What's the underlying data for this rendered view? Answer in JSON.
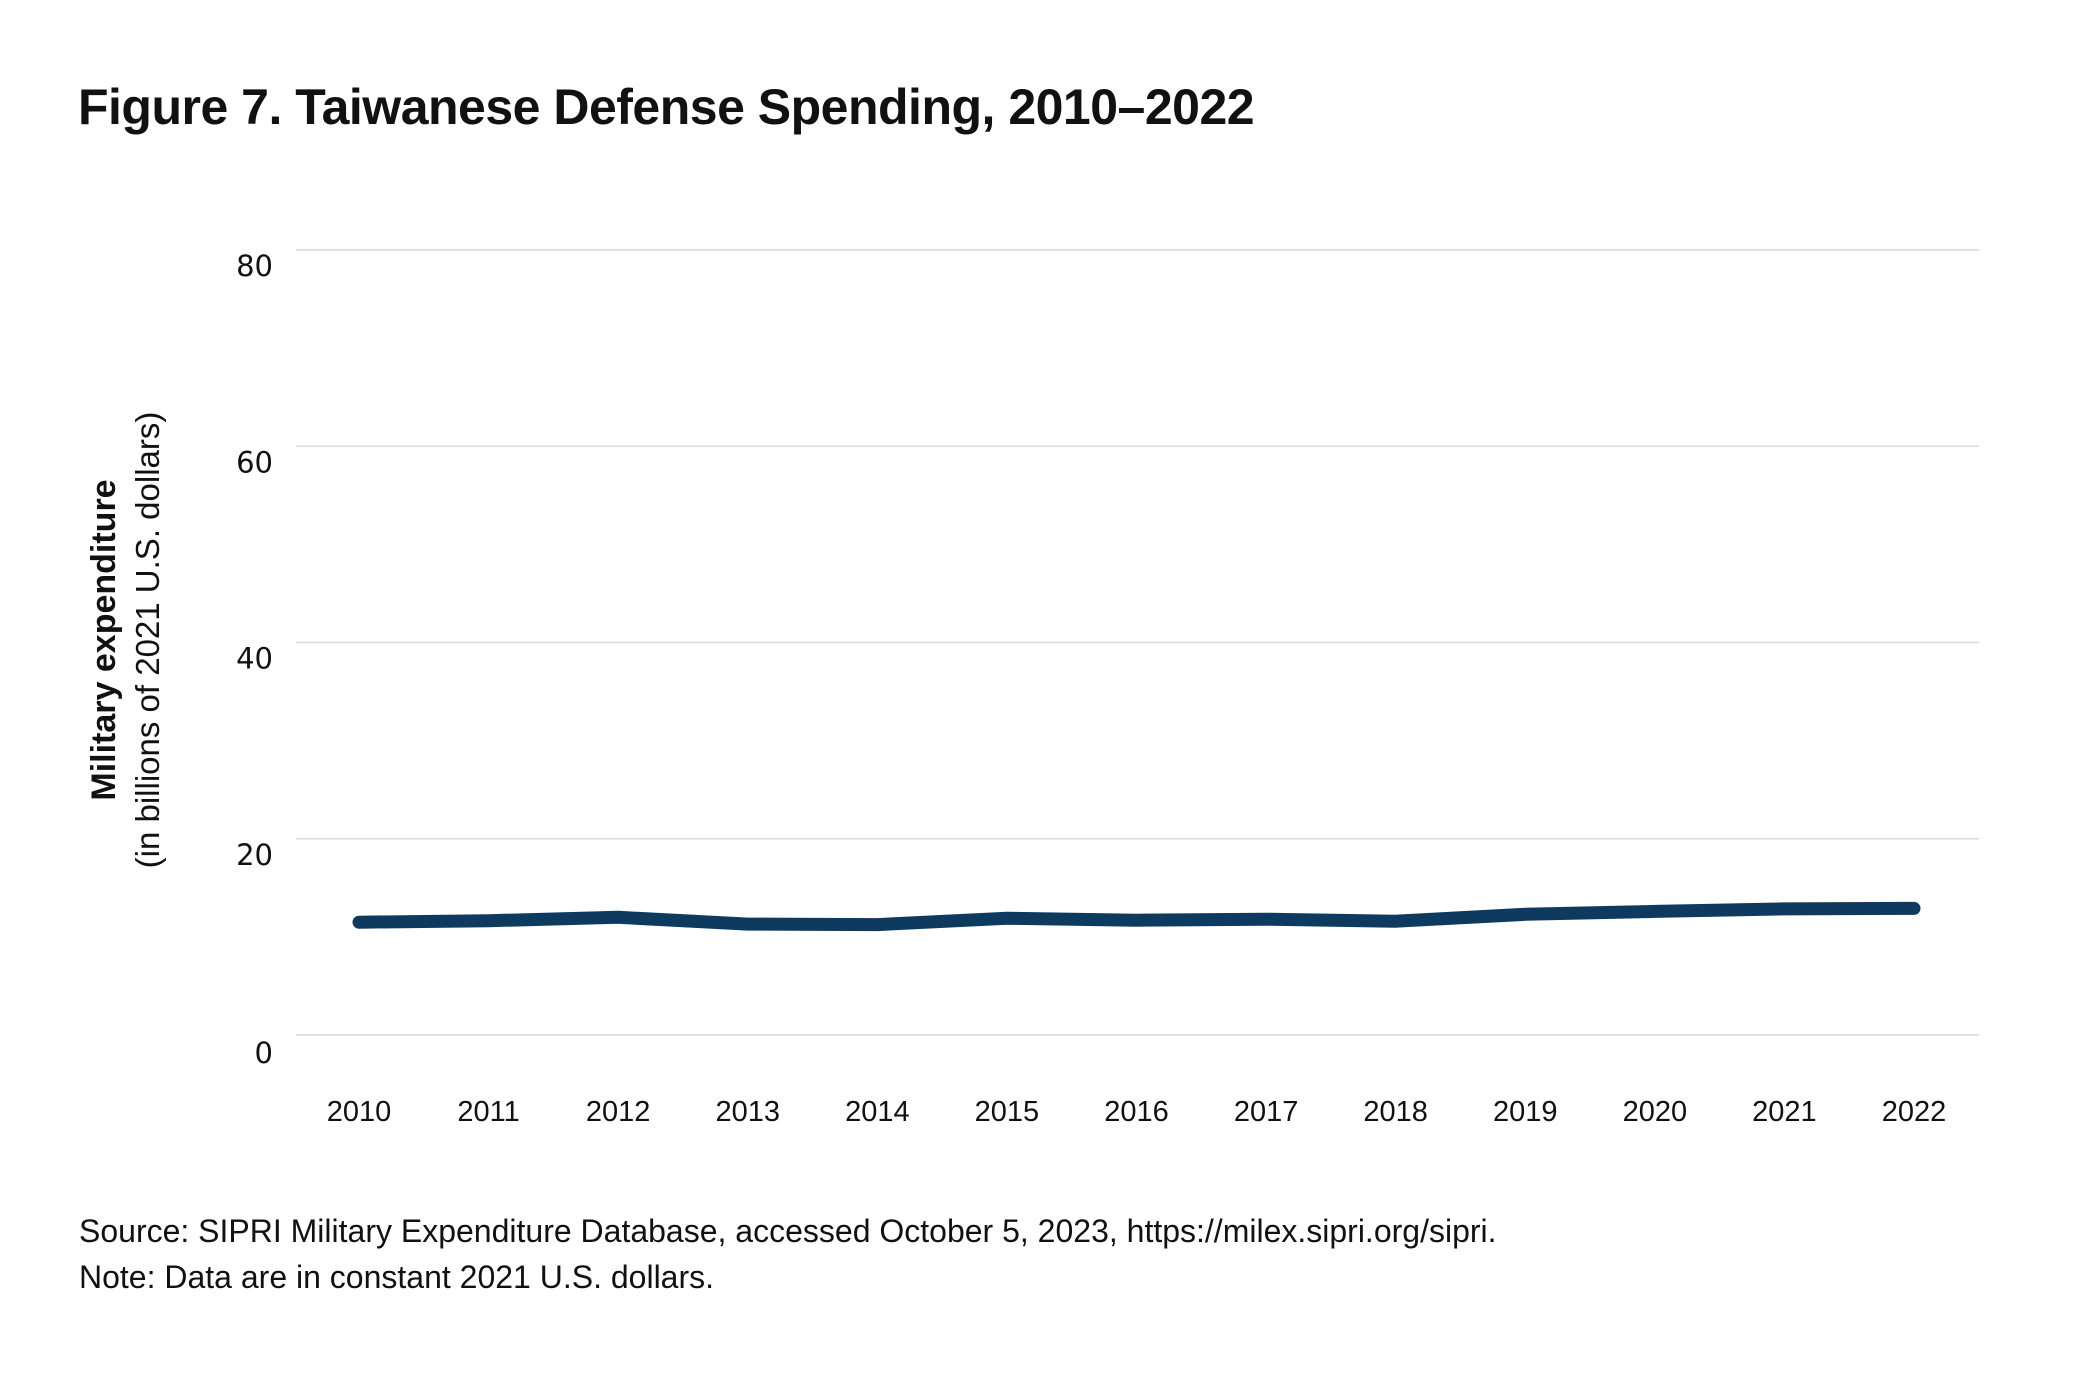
{
  "chart_data": {
    "type": "line",
    "title": "Figure 7. Taiwanese Defense Spending, 2010–2022",
    "ylabel": "Military expenditure",
    "ylabel_sub": "(in billions of 2021 U.S. dollars)",
    "xlabel": "",
    "x": [
      "2010",
      "2011",
      "2012",
      "2013",
      "2014",
      "2015",
      "2016",
      "2017",
      "2018",
      "2019",
      "2020",
      "2021",
      "2022"
    ],
    "values": [
      11.5,
      11.65,
      12.0,
      11.3,
      11.25,
      11.9,
      11.7,
      11.8,
      11.6,
      12.3,
      12.6,
      12.85,
      12.9
    ],
    "ylim": [
      0,
      80
    ],
    "yticks": [
      "0",
      "20",
      "40",
      "60",
      "80"
    ],
    "grid": true,
    "line_color": "#0f3a60",
    "grid_color": "#d9d9d9"
  },
  "footer": {
    "source": "Source: SIPRI Military Expenditure Database, accessed October 5, 2023, https://milex.sipri.org/sipri.",
    "note": "Note: Data are in constant 2021 U.S. dollars."
  }
}
